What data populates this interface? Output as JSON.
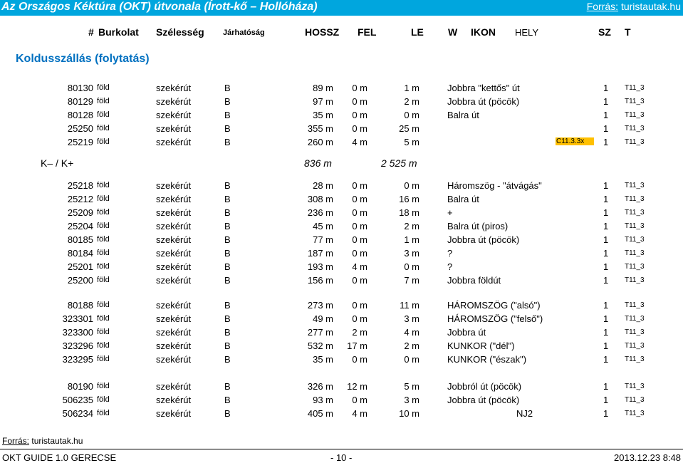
{
  "header": {
    "title": "Az Országos Kéktúra (OKT) útvonala (Írott-kő – Hollóháza)",
    "source_label": "Forrás:",
    "source_value": "turistautak.hu"
  },
  "columns": {
    "num": "#",
    "burkolat": "Burkolat",
    "szelesseg": "Szélesség",
    "jarhatosag": "Járhatóság",
    "hossz": "HOSSZ",
    "fel": "FEL",
    "le": "LE",
    "w": "W",
    "ikon": "IKON",
    "hely": "HELY",
    "sz": "SZ",
    "t": "T"
  },
  "section_title": "Koldusszállás (folytatás)",
  "rows": [
    {
      "id": "80130",
      "surf": "föld",
      "width": "szekérút",
      "j": "B",
      "h": "89 m",
      "fel": "0 m",
      "le": "1 m",
      "w": "Jobbra \"kettős\" út",
      "hely": "",
      "sz": "1",
      "t": "T11_3"
    },
    {
      "id": "80129",
      "surf": "föld",
      "width": "szekérút",
      "j": "B",
      "h": "97 m",
      "fel": "0 m",
      "le": "2 m",
      "w": "Jobbra út (pöcök)",
      "hely": "",
      "sz": "1",
      "t": "T11_3"
    },
    {
      "id": "80128",
      "surf": "föld",
      "width": "szekérút",
      "j": "B",
      "h": "35 m",
      "fel": "0 m",
      "le": "0 m",
      "w": "Balra út",
      "hely": "",
      "sz": "1",
      "t": "T11_3"
    },
    {
      "id": "25250",
      "surf": "föld",
      "width": "szekérút",
      "j": "B",
      "h": "355 m",
      "fel": "0 m",
      "le": "25 m",
      "w": "",
      "hely": "",
      "sz": "1",
      "t": "T11_3"
    },
    {
      "id": "25219",
      "surf": "föld",
      "width": "szekérút",
      "j": "B",
      "h": "260 m",
      "fel": "4 m",
      "le": "5 m",
      "w": "",
      "hely": "C11.3.3x",
      "sz": "1",
      "t": "T11_3"
    },
    {
      "id": "25218",
      "surf": "föld",
      "width": "szekérút",
      "j": "B",
      "h": "28 m",
      "fel": "0 m",
      "le": "0 m",
      "w": "Háromszög - \"átvágás\"",
      "hely": "",
      "sz": "1",
      "t": "T11_3"
    },
    {
      "id": "25212",
      "surf": "föld",
      "width": "szekérút",
      "j": "B",
      "h": "308 m",
      "fel": "0 m",
      "le": "16 m",
      "w": "Balra út",
      "hely": "",
      "sz": "1",
      "t": "T11_3"
    },
    {
      "id": "25209",
      "surf": "föld",
      "width": "szekérút",
      "j": "B",
      "h": "236 m",
      "fel": "0 m",
      "le": "18 m",
      "w": "+",
      "hely": "",
      "sz": "1",
      "t": "T11_3"
    },
    {
      "id": "25204",
      "surf": "föld",
      "width": "szekérút",
      "j": "B",
      "h": "45 m",
      "fel": "0 m",
      "le": "2 m",
      "w": "Balra út (piros)",
      "hely": "",
      "sz": "1",
      "t": "T11_3"
    },
    {
      "id": "80185",
      "surf": "föld",
      "width": "szekérút",
      "j": "B",
      "h": "77 m",
      "fel": "0 m",
      "le": "1 m",
      "w": "Jobbra út (pöcök)",
      "hely": "",
      "sz": "1",
      "t": "T11_3"
    },
    {
      "id": "80184",
      "surf": "föld",
      "width": "szekérút",
      "j": "B",
      "h": "187 m",
      "fel": "0 m",
      "le": "3 m",
      "w": "?",
      "hely": "",
      "sz": "1",
      "t": "T11_3"
    },
    {
      "id": "25201",
      "surf": "föld",
      "width": "szekérút",
      "j": "B",
      "h": "193 m",
      "fel": "4 m",
      "le": "0 m",
      "w": "?",
      "hely": "",
      "sz": "1",
      "t": "T11_3"
    },
    {
      "id": "25200",
      "surf": "föld",
      "width": "szekérút",
      "j": "B",
      "h": "156 m",
      "fel": "0 m",
      "le": "7 m",
      "w": "Jobbra földút",
      "hely": "",
      "sz": "1",
      "t": "T11_3"
    },
    {
      "id": "80188",
      "surf": "föld",
      "width": "szekérút",
      "j": "B",
      "h": "273 m",
      "fel": "0 m",
      "le": "11 m",
      "w": "HÁROMSZÖG (\"alsó\")",
      "hely": "",
      "sz": "1",
      "t": "T11_3"
    },
    {
      "id": "323301",
      "surf": "föld",
      "width": "szekérút",
      "j": "B",
      "h": "49 m",
      "fel": "0 m",
      "le": "3 m",
      "w": "HÁROMSZÖG (\"felső\")",
      "hely": "",
      "sz": "1",
      "t": "T11_3"
    },
    {
      "id": "323300",
      "surf": "föld",
      "width": "szekérút",
      "j": "B",
      "h": "277 m",
      "fel": "2 m",
      "le": "4 m",
      "w": "Jobbra út",
      "hely": "",
      "sz": "1",
      "t": "T11_3"
    },
    {
      "id": "323296",
      "surf": "föld",
      "width": "szekérút",
      "j": "B",
      "h": "532 m",
      "fel": "17 m",
      "le": "2 m",
      "w": "KUNKOR (\"dél\")",
      "hely": "",
      "sz": "1",
      "t": "T11_3"
    },
    {
      "id": "323295",
      "surf": "föld",
      "width": "szekérút",
      "j": "B",
      "h": "35 m",
      "fel": "0 m",
      "le": "0 m",
      "w": "KUNKOR (\"észak\")",
      "hely": "",
      "sz": "1",
      "t": "T11_3"
    },
    {
      "id": "80190",
      "surf": "föld",
      "width": "szekérút",
      "j": "B",
      "h": "326 m",
      "fel": "12 m",
      "le": "5 m",
      "w": "Jobbról út (pöcök)",
      "hely": "",
      "sz": "1",
      "t": "T11_3"
    },
    {
      "id": "506235",
      "surf": "föld",
      "width": "szekérút",
      "j": "B",
      "h": "93 m",
      "fel": "0 m",
      "le": "3 m",
      "w": "Jobbra út (pöcök)",
      "hely": "",
      "sz": "1",
      "t": "T11_3"
    },
    {
      "id": "506234",
      "surf": "föld",
      "width": "szekérút",
      "j": "B",
      "h": "405 m",
      "fel": "4 m",
      "le": "10 m",
      "w": "NJ2",
      "hely": "",
      "sz": "1",
      "t": "T11_3"
    }
  ],
  "summary": {
    "label": "K– / K+",
    "hossz": "836 m",
    "fel": "2 525 m"
  },
  "bottom_source": {
    "label": "Forrás:",
    "value": "turistautak.hu"
  },
  "footer": {
    "left": "OKT GUIDE 1.0  GERECSE",
    "center": "- 10 -",
    "right": "2013.12.23  8:48"
  }
}
